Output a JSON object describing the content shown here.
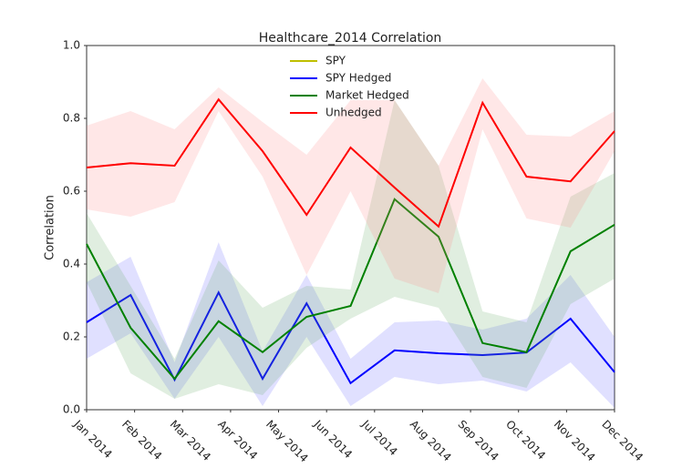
{
  "chart_data": {
    "type": "line",
    "title": "Healthcare_2014 Correlation",
    "ylabel": "Correlation",
    "x": [
      0,
      0.9167,
      1.8333,
      2.75,
      3.6667,
      4.5833,
      5.5,
      6.4167,
      7.3333,
      8.25,
      9.1667,
      10.0833,
      11
    ],
    "xlim": [
      0,
      11
    ],
    "xticks": [
      {
        "value": 0,
        "label": "Jan 2014"
      },
      {
        "value": 1,
        "label": "Feb 2014"
      },
      {
        "value": 2,
        "label": "Mar 2014"
      },
      {
        "value": 3,
        "label": "Apr 2014"
      },
      {
        "value": 4,
        "label": "May 2014"
      },
      {
        "value": 5,
        "label": "Jun 2014"
      },
      {
        "value": 6,
        "label": "Jul 2014"
      },
      {
        "value": 7,
        "label": "Aug 2014"
      },
      {
        "value": 8,
        "label": "Sep 2014"
      },
      {
        "value": 9,
        "label": "Oct 2014"
      },
      {
        "value": 10,
        "label": "Nov 2014"
      },
      {
        "value": 11,
        "label": "Dec 2014"
      }
    ],
    "ylim": [
      0,
      1
    ],
    "yticks": [
      {
        "value": 0,
        "label": "0.0"
      },
      {
        "value": 0.2,
        "label": "0.2"
      },
      {
        "value": 0.4,
        "label": "0.4"
      },
      {
        "value": 0.6,
        "label": "0.6"
      },
      {
        "value": 0.8,
        "label": "0.8"
      },
      {
        "value": 1,
        "label": "1.0"
      }
    ],
    "grid": false,
    "legend": "upper center",
    "series": [
      {
        "name": "SPY",
        "color": "#bfbf00",
        "values": [
          null,
          null,
          null,
          null,
          null,
          null,
          null,
          null,
          null,
          null,
          null,
          null,
          null
        ]
      },
      {
        "name": "SPY Hedged",
        "color": "#0000ff",
        "band_color": "#6666ff",
        "values": [
          0.24,
          0.315,
          0.082,
          0.322,
          0.085,
          0.292,
          0.073,
          0.163,
          0.155,
          0.15,
          0.157,
          0.25,
          0.103
        ],
        "upper": [
          0.35,
          0.42,
          0.13,
          0.46,
          0.16,
          0.37,
          0.14,
          0.24,
          0.245,
          0.22,
          0.25,
          0.37,
          0.2
        ],
        "lower": [
          0.14,
          0.21,
          0.03,
          0.2,
          0.01,
          0.2,
          0.01,
          0.09,
          0.07,
          0.08,
          0.05,
          0.13,
          0.005
        ]
      },
      {
        "name": "Market Hedged",
        "color": "#008000",
        "band_color": "#66aa66",
        "values": [
          0.455,
          0.225,
          0.085,
          0.243,
          0.158,
          0.255,
          0.285,
          0.578,
          0.475,
          0.183,
          0.158,
          0.435,
          0.508
        ],
        "upper": [
          0.54,
          0.34,
          0.14,
          0.41,
          0.28,
          0.34,
          0.33,
          0.85,
          0.67,
          0.27,
          0.24,
          0.585,
          0.65
        ],
        "lower": [
          0.35,
          0.1,
          0.03,
          0.07,
          0.04,
          0.17,
          0.25,
          0.31,
          0.28,
          0.09,
          0.06,
          0.29,
          0.36
        ]
      },
      {
        "name": "Unhedged",
        "color": "#ff0000",
        "band_color": "#ff8888",
        "values": [
          0.665,
          0.677,
          0.67,
          0.852,
          0.71,
          0.535,
          0.72,
          0.61,
          0.503,
          0.843,
          0.64,
          0.627,
          0.765
        ],
        "upper": [
          0.78,
          0.82,
          0.77,
          0.885,
          0.79,
          0.7,
          0.85,
          0.85,
          0.67,
          0.91,
          0.755,
          0.75,
          0.82
        ],
        "lower": [
          0.55,
          0.53,
          0.57,
          0.82,
          0.64,
          0.37,
          0.6,
          0.36,
          0.32,
          0.77,
          0.525,
          0.5,
          0.71
        ]
      }
    ]
  }
}
